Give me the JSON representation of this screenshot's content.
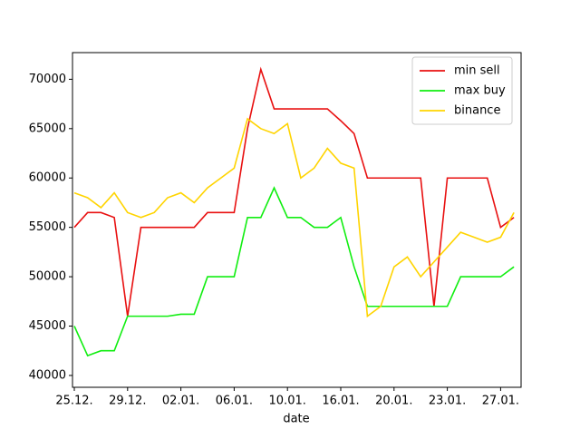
{
  "chart_data": {
    "type": "line",
    "x_label": "date",
    "categories": [
      "25.12.",
      null,
      null,
      null,
      "29.12.",
      null,
      null,
      null,
      "02.01.",
      null,
      null,
      null,
      "06.01.",
      null,
      null,
      null,
      "10.01.",
      null,
      null,
      null,
      "16.01.",
      null,
      null,
      null,
      "20.01.",
      null,
      null,
      null,
      "23.01.",
      null,
      null,
      null,
      "27.01.",
      null
    ],
    "series": [
      {
        "name": "min sell",
        "color": "#e81010",
        "values": [
          55000,
          56500,
          56500,
          56000,
          46000,
          55000,
          55000,
          55000,
          55000,
          55000,
          56500,
          56500,
          56500,
          65000,
          71000,
          67000,
          67000,
          67000,
          67000,
          67000,
          65800,
          64500,
          60000,
          60000,
          60000,
          60000,
          60000,
          47000,
          60000,
          60000,
          60000,
          60000,
          55000,
          56000
        ]
      },
      {
        "name": "max buy",
        "color": "#10ee10",
        "values": [
          45000,
          42000,
          42500,
          42500,
          46000,
          46000,
          46000,
          46000,
          46200,
          46200,
          50000,
          50000,
          50000,
          56000,
          56000,
          59000,
          56000,
          56000,
          55000,
          55000,
          56000,
          51000,
          47000,
          47000,
          47000,
          47000,
          47000,
          47000,
          47000,
          50000,
          50000,
          50000,
          50000,
          51000
        ]
      },
      {
        "name": "binance",
        "color": "#ffd400",
        "values": [
          58500,
          58000,
          57000,
          58500,
          56500,
          56000,
          56500,
          58000,
          58500,
          57500,
          59000,
          60000,
          61000,
          66000,
          65000,
          64500,
          65500,
          60000,
          61000,
          63000,
          61500,
          61000,
          46000,
          47000,
          51000,
          52000,
          50000,
          51500,
          53000,
          54500,
          54000,
          53500,
          54000,
          56500
        ]
      }
    ],
    "ylim": [
      38800,
      72700
    ],
    "yticks": [
      40000,
      45000,
      50000,
      55000,
      60000,
      65000,
      70000
    ],
    "legend": "upper right"
  }
}
